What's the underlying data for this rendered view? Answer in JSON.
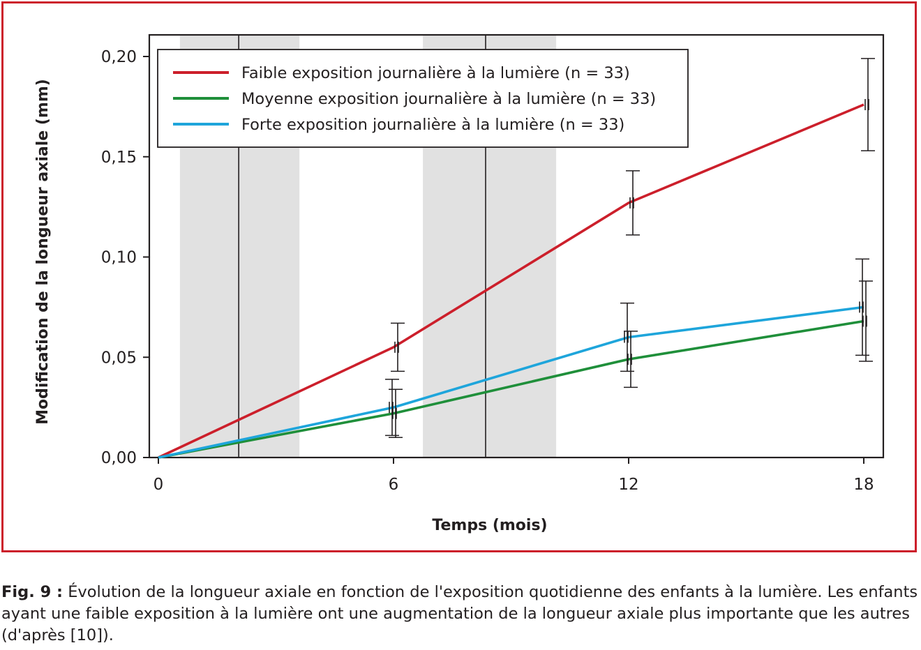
{
  "caption": {
    "label": "Fig. 9 :",
    "text": "Évolution de la longueur axiale en fonction de l'exposition quotidienne des enfants à la lumière. Les enfants ayant une faible exposition à la lumière ont une augmentation de la longueur axiale plus importante que les autres (d'après [10])."
  },
  "chart_data": {
    "type": "line",
    "title": "",
    "xlabel": "Temps (mois)",
    "ylabel": "Modification de la longueur axiale (mm)",
    "xlim": [
      -0.25,
      18.5
    ],
    "ylim": [
      0,
      0.21
    ],
    "x_ticks": [
      0,
      6,
      12,
      18
    ],
    "x_tick_labels": [
      "0",
      "6",
      "12",
      "18"
    ],
    "y_ticks": [
      0,
      0.05,
      0.1,
      0.15,
      0.2
    ],
    "y_tick_labels": [
      "0,00",
      "0,05",
      "0,10",
      "0,15",
      "0,20"
    ],
    "shaded_bands": [
      {
        "x0": 0.55,
        "x1": 3.6
      },
      {
        "x0": 6.75,
        "x1": 10.15
      }
    ],
    "vertical_lines": [
      2.05,
      8.35
    ],
    "legend_position": "top-left",
    "grid": false,
    "series": [
      {
        "name": "Faible exposition journalière à la lumière (n = 33)",
        "color": "#cc1f2b",
        "x": [
          0,
          6,
          12,
          18
        ],
        "y": [
          0,
          0.055,
          0.127,
          0.176
        ],
        "error_low": [
          0,
          0.043,
          0.111,
          0.153
        ],
        "error_high": [
          0,
          0.067,
          0.143,
          0.199
        ]
      },
      {
        "name": "Moyenne exposition journalière à la lumière (n = 33)",
        "color": "#1f8f3a",
        "x": [
          0,
          6,
          12,
          18
        ],
        "y": [
          0,
          0.022,
          0.049,
          0.068
        ],
        "error_low": [
          0,
          0.01,
          0.035,
          0.048
        ],
        "error_high": [
          0,
          0.034,
          0.063,
          0.088
        ]
      },
      {
        "name": "Forte exposition journalière à la lumière (n = 33)",
        "color": "#1ea5db",
        "x": [
          0,
          6,
          12,
          18
        ],
        "y": [
          0,
          0.025,
          0.06,
          0.075
        ],
        "error_low": [
          0,
          0.011,
          0.043,
          0.051
        ],
        "error_high": [
          0,
          0.039,
          0.077,
          0.099
        ]
      }
    ]
  },
  "colors": {
    "frame": "#cc1f2b",
    "band": "#e1e1e1",
    "axis": "#231f20"
  }
}
